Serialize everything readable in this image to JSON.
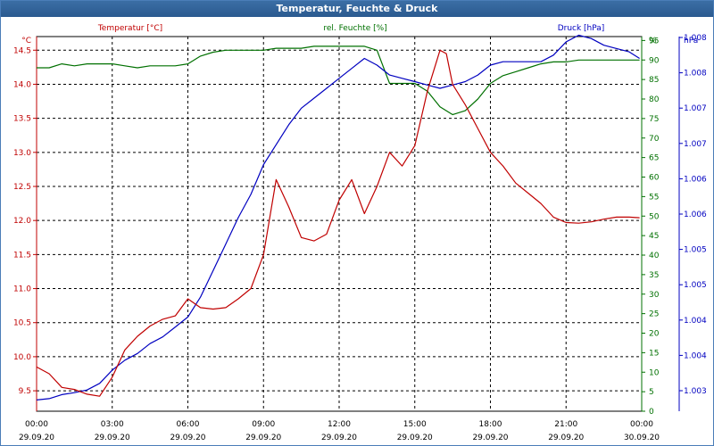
{
  "window": {
    "title": "Temperatur, Feuchte & Druck"
  },
  "colors": {
    "temperature": "#c00000",
    "humidity": "#007000",
    "pressure": "#0000c0",
    "grid": "#000000",
    "title_bg": "#2f6399"
  },
  "chart_data": {
    "type": "line",
    "title": "Temperatur, Feuchte & Druck",
    "grid": true,
    "x": {
      "range": [
        "29.09.20 00:00",
        "30.09.20 00:00"
      ],
      "ticks": [
        {
          "time": "00:00",
          "date": "29.09.20"
        },
        {
          "time": "03:00",
          "date": "29.09.20"
        },
        {
          "time": "06:00",
          "date": "29.09.20"
        },
        {
          "time": "09:00",
          "date": "29.09.20"
        },
        {
          "time": "12:00",
          "date": "29.09.20"
        },
        {
          "time": "15:00",
          "date": "29.09.20"
        },
        {
          "time": "18:00",
          "date": "29.09.20"
        },
        {
          "time": "21:00",
          "date": "29.09.20"
        },
        {
          "time": "00:00",
          "date": "30.09.20"
        }
      ]
    },
    "axes": {
      "temperature": {
        "unit": "°C",
        "ylim": [
          9.2,
          14.7
        ],
        "ticks": [
          "9.5",
          "10.0",
          "10.5",
          "11.0",
          "11.5",
          "12.0",
          "12.5",
          "13.0",
          "13.5",
          "14.0",
          "14.5"
        ]
      },
      "humidity": {
        "unit": "%",
        "ylim": [
          0,
          96
        ],
        "ticks": [
          "0",
          "5",
          "10",
          "15",
          "20",
          "25",
          "30",
          "35",
          "40",
          "45",
          "50",
          "55",
          "60",
          "65",
          "70",
          "75",
          "80",
          "85",
          "90",
          "95",
          "%"
        ]
      },
      "pressure": {
        "unit": "hPa",
        "ylim": [
          1002.68,
          1008.33
        ],
        "ticks": [
          "1.003",
          "1.004",
          "1.004",
          "1.005",
          "1.005",
          "1.006",
          "1.006",
          "1.007",
          "1.007",
          "1.008",
          "1.008",
          "hPa"
        ]
      }
    },
    "series": [
      {
        "name": "Temperatur [°C]",
        "axis": "temperature",
        "color": "#c00000",
        "x": [
          "00:00",
          "00:30",
          "01:00",
          "01:30",
          "02:00",
          "02:30",
          "03:00",
          "03:30",
          "04:00",
          "04:30",
          "05:00",
          "05:30",
          "06:00",
          "06:30",
          "07:00",
          "07:30",
          "08:00",
          "08:30",
          "09:00",
          "09:30",
          "10:00",
          "10:30",
          "11:00",
          "11:30",
          "12:00",
          "12:30",
          "13:00",
          "13:30",
          "14:00",
          "14:30",
          "15:00",
          "15:30",
          "16:00",
          "16:15",
          "16:30",
          "17:00",
          "17:30",
          "18:00",
          "18:30",
          "19:00",
          "19:30",
          "20:00",
          "20:30",
          "21:00",
          "21:30",
          "22:00",
          "22:30",
          "23:00",
          "23:30",
          "23:55"
        ],
        "values": [
          9.85,
          9.75,
          9.55,
          9.52,
          9.45,
          9.42,
          9.7,
          10.1,
          10.3,
          10.45,
          10.55,
          10.6,
          10.85,
          10.72,
          10.7,
          10.72,
          10.85,
          11.0,
          11.5,
          12.6,
          12.2,
          11.75,
          11.7,
          11.8,
          12.3,
          12.6,
          12.1,
          12.5,
          13.0,
          12.8,
          13.1,
          13.9,
          14.5,
          14.45,
          14.0,
          13.7,
          13.35,
          13.0,
          12.8,
          12.55,
          12.4,
          12.25,
          12.05,
          11.97,
          11.96,
          11.98,
          12.02,
          12.05,
          12.05,
          12.04
        ]
      },
      {
        "name": "rel. Feuchte [%]",
        "axis": "humidity",
        "color": "#007000",
        "x": [
          "00:00",
          "00:30",
          "01:00",
          "01:30",
          "02:00",
          "02:30",
          "03:00",
          "03:30",
          "04:00",
          "04:30",
          "05:00",
          "05:30",
          "06:00",
          "06:30",
          "07:00",
          "07:30",
          "08:00",
          "08:30",
          "09:00",
          "09:30",
          "10:00",
          "10:30",
          "11:00",
          "11:30",
          "12:00",
          "12:30",
          "13:00",
          "13:30",
          "14:00",
          "14:30",
          "15:00",
          "15:30",
          "16:00",
          "16:30",
          "17:00",
          "17:30",
          "18:00",
          "18:30",
          "19:00",
          "19:30",
          "20:00",
          "20:30",
          "21:00",
          "21:30",
          "22:00",
          "22:30",
          "23:00",
          "23:30",
          "23:55"
        ],
        "values": [
          88,
          88,
          89,
          88.5,
          89,
          89,
          89,
          88.5,
          88,
          88.5,
          88.5,
          88.5,
          89,
          91,
          92,
          92.5,
          92.5,
          92.5,
          92.5,
          93,
          93,
          93,
          93.5,
          93.5,
          93.5,
          93.5,
          93.5,
          92.5,
          84,
          84,
          84,
          82,
          78,
          76,
          77,
          80,
          84,
          86,
          87,
          88,
          89,
          89.5,
          89.5,
          90,
          90,
          90,
          90,
          90,
          90
        ]
      },
      {
        "name": "Druck [hPa]",
        "axis": "pressure",
        "color": "#0000c0",
        "x": [
          "00:00",
          "00:30",
          "01:00",
          "01:30",
          "02:00",
          "02:30",
          "03:00",
          "03:30",
          "04:00",
          "04:30",
          "05:00",
          "05:30",
          "06:00",
          "06:30",
          "07:00",
          "07:30",
          "08:00",
          "08:30",
          "09:00",
          "09:30",
          "10:00",
          "10:30",
          "11:00",
          "11:30",
          "12:00",
          "12:30",
          "13:00",
          "13:30",
          "14:00",
          "14:30",
          "15:00",
          "15:30",
          "16:00",
          "16:30",
          "17:00",
          "17:30",
          "18:00",
          "18:30",
          "19:00",
          "19:30",
          "20:00",
          "20:30",
          "21:00",
          "21:30",
          "22:00",
          "22:30",
          "23:00",
          "23:30",
          "23:55"
        ],
        "values": [
          1002.85,
          1002.87,
          1002.93,
          1002.96,
          1003.0,
          1003.1,
          1003.3,
          1003.45,
          1003.55,
          1003.7,
          1003.8,
          1003.95,
          1004.1,
          1004.4,
          1004.8,
          1005.2,
          1005.6,
          1005.95,
          1006.4,
          1006.7,
          1007.0,
          1007.25,
          1007.4,
          1007.55,
          1007.7,
          1007.85,
          1008.0,
          1007.9,
          1007.75,
          1007.7,
          1007.65,
          1007.6,
          1007.55,
          1007.6,
          1007.65,
          1007.75,
          1007.9,
          1007.95,
          1007.95,
          1007.95,
          1007.95,
          1008.05,
          1008.25,
          1008.35,
          1008.3,
          1008.2,
          1008.15,
          1008.1,
          1008.0
        ]
      }
    ]
  }
}
